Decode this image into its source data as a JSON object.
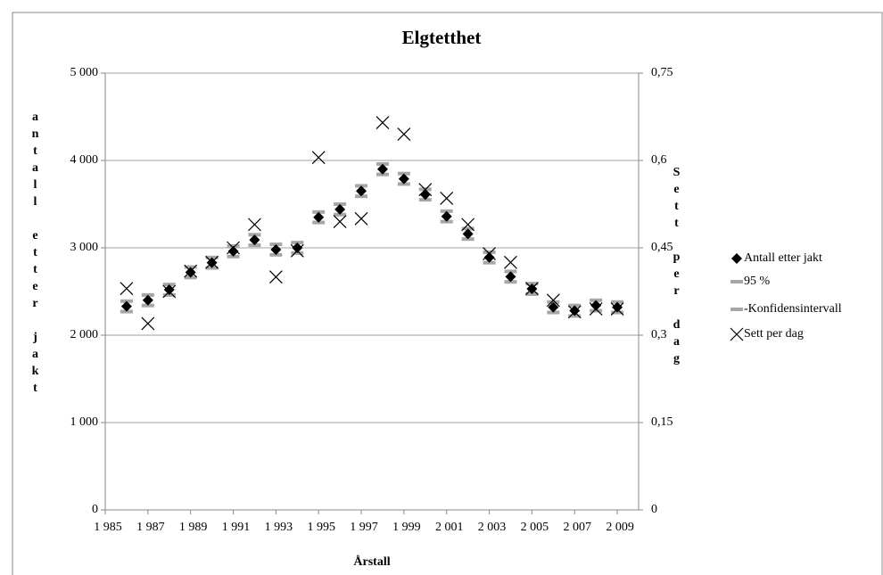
{
  "chart_data": {
    "type": "scatter",
    "title": "Elgtetthet",
    "x_label": "Årstall",
    "y_label": "antall etter jakt",
    "y2_label": "Sett per dag",
    "xlim": [
      1985,
      2010
    ],
    "xticks": [
      {
        "value": 1985,
        "label": "1 985"
      },
      {
        "value": 1987,
        "label": "1 987"
      },
      {
        "value": 1989,
        "label": "1 989"
      },
      {
        "value": 1991,
        "label": "1 991"
      },
      {
        "value": 1993,
        "label": "1 993"
      },
      {
        "value": 1995,
        "label": "1 995"
      },
      {
        "value": 1997,
        "label": "1 997"
      },
      {
        "value": 1999,
        "label": "1 999"
      },
      {
        "value": 2001,
        "label": "2 001"
      },
      {
        "value": 2003,
        "label": "2 003"
      },
      {
        "value": 2005,
        "label": "2 005"
      },
      {
        "value": 2007,
        "label": "2 007"
      },
      {
        "value": 2009,
        "label": "2 009"
      }
    ],
    "ylim": [
      0,
      5000
    ],
    "yticks": [
      0,
      {
        "value": 1000,
        "label": "1 000"
      },
      {
        "value": 2000,
        "label": "2 000"
      },
      {
        "value": 3000,
        "label": "3 000"
      },
      {
        "value": 4000,
        "label": "4 000"
      },
      {
        "value": 5000,
        "label": "5 000"
      }
    ],
    "y2lim": [
      0,
      0.75
    ],
    "y2ticks": [
      0,
      {
        "value": 0.15,
        "label": "0,15"
      },
      {
        "value": 0.3,
        "label": "0,3"
      },
      {
        "value": 0.45,
        "label": "0,45"
      },
      {
        "value": 0.6,
        "label": "0,6"
      },
      {
        "value": 0.75,
        "label": "0,75"
      }
    ],
    "grid": true,
    "legend": "right",
    "x": [
      1986,
      1987,
      1988,
      1989,
      1990,
      1991,
      1992,
      1993,
      1994,
      1995,
      1996,
      1997,
      1998,
      1999,
      2000,
      2001,
      2002,
      2003,
      2004,
      2005,
      2006,
      2007,
      2008,
      2009
    ],
    "series": [
      {
        "name": "Antall etter jakt",
        "color": "#000000",
        "marker": "diamond",
        "values": [
          2330,
          2400,
          2520,
          2720,
          2830,
          2960,
          3090,
          2980,
          3000,
          3350,
          3440,
          3650,
          3900,
          3790,
          3610,
          3360,
          3160,
          2890,
          2670,
          2530,
          2320,
          2280,
          2340,
          2320
        ]
      },
      {
        "name": "95 %",
        "color": "#a6a6a6",
        "marker": "dash",
        "values": [
          2390,
          2460,
          2580,
          2780,
          2890,
          3020,
          3150,
          3040,
          3060,
          3410,
          3500,
          3710,
          3960,
          3850,
          3670,
          3420,
          3220,
          2950,
          2730,
          2590,
          2380,
          2340,
          2400,
          2380
        ]
      },
      {
        "name": "-Konfidensintervall",
        "color": "#a6a6a6",
        "marker": "dash",
        "values": [
          2270,
          2340,
          2460,
          2660,
          2770,
          2900,
          3030,
          2920,
          2940,
          3290,
          3380,
          3590,
          3840,
          3730,
          3550,
          3300,
          3100,
          2830,
          2610,
          2470,
          2260,
          2220,
          2280,
          2260
        ]
      },
      {
        "name": "Sett per dag",
        "color": "#000000",
        "marker": "x",
        "axis": "y2",
        "values": [
          0.38,
          0.32,
          0.375,
          0.41,
          0.425,
          0.45,
          0.49,
          0.4,
          0.445,
          0.605,
          0.495,
          0.5,
          0.665,
          0.645,
          0.55,
          0.535,
          0.49,
          0.44,
          0.425,
          0.38,
          0.36,
          0.34,
          0.345,
          0.345
        ]
      }
    ]
  }
}
